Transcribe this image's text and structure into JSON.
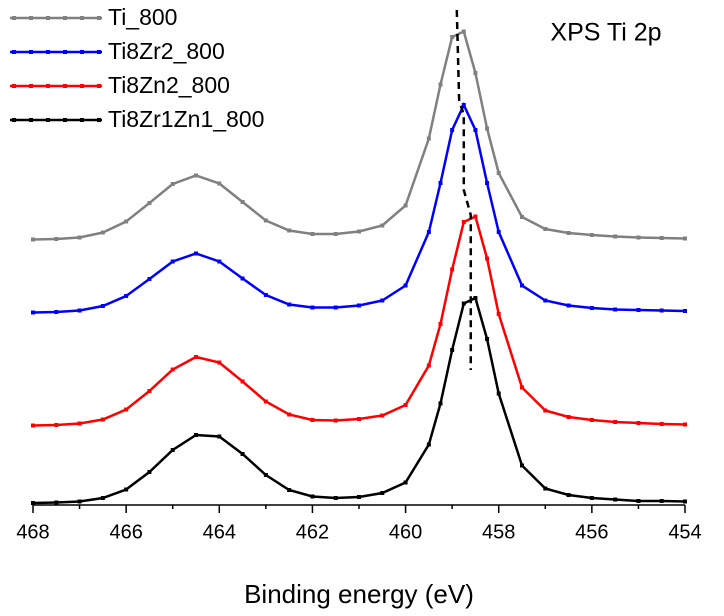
{
  "chart_data": {
    "type": "line",
    "annotation": "XPS Ti 2p",
    "x_label": "Binding energy (eV)",
    "xlim": [
      468,
      454
    ],
    "xticks": [
      468,
      466,
      464,
      462,
      460,
      458,
      456,
      454
    ],
    "xticks_minor": [
      467,
      465,
      463,
      461,
      459,
      457,
      455
    ],
    "ylim": [
      0,
      100
    ],
    "legend": "top-left",
    "x": [
      468,
      467.5,
      467,
      466.5,
      466,
      465.5,
      465,
      464.5,
      464,
      463.5,
      463,
      462.5,
      462,
      461.5,
      461,
      460.5,
      460,
      459.5,
      459.25,
      459,
      458.75,
      458.5,
      458.25,
      458,
      457.5,
      457,
      456.5,
      456,
      455.5,
      455,
      454.5,
      454
    ],
    "series": [
      {
        "name": "Ti_800",
        "color": "#808080",
        "values": [
          53.1,
          53.2,
          53.5,
          54.5,
          56.7,
          60.4,
          64.2,
          65.9,
          64.3,
          60.6,
          56.9,
          54.9,
          54.2,
          54.2,
          54.7,
          55.9,
          59.9,
          73.3,
          84.1,
          93.6,
          94.7,
          86.4,
          75.3,
          66.4,
          57.6,
          55.2,
          54.4,
          54.0,
          53.7,
          53.5,
          53.4,
          53.3
        ]
      },
      {
        "name": "Ti8Zr2_800",
        "color": "#0000ff",
        "values": [
          38.5,
          38.6,
          38.9,
          39.8,
          41.8,
          45.2,
          48.7,
          50.3,
          48.7,
          45.3,
          42.0,
          40.1,
          39.5,
          39.5,
          39.9,
          40.9,
          43.9,
          54.6,
          64.4,
          75.0,
          80.0,
          75.0,
          64.4,
          54.6,
          43.9,
          40.9,
          39.9,
          39.4,
          39.1,
          39.0,
          38.9,
          38.8
        ]
      },
      {
        "name": "Ti8Zn2_800",
        "color": "#ff0000",
        "values": [
          15.9,
          16.0,
          16.3,
          17.1,
          19.1,
          22.8,
          27.1,
          29.6,
          28.5,
          24.7,
          20.7,
          18.1,
          17.0,
          16.9,
          17.2,
          17.9,
          20.0,
          27.9,
          36.2,
          47.1,
          56.6,
          57.7,
          49.3,
          38.2,
          23.5,
          18.9,
          17.6,
          17.0,
          16.6,
          16.4,
          16.2,
          16.1
        ]
      },
      {
        "name": "Ti8Zr1Zn1_800",
        "color": "#000000",
        "values": [
          0.4,
          0.5,
          0.7,
          1.4,
          3.1,
          6.6,
          11.0,
          14.0,
          13.7,
          10.2,
          6.0,
          3.0,
          1.7,
          1.4,
          1.6,
          2.4,
          4.5,
          12.1,
          20.3,
          31.0,
          40.3,
          41.4,
          33.2,
          22.3,
          7.9,
          3.3,
          2.0,
          1.4,
          1.1,
          0.8,
          0.8,
          0.7
        ]
      }
    ],
    "peak_line": {
      "x": [
        458.9,
        458.85,
        458.75,
        458.75,
        458.6,
        458.6
      ],
      "y": [
        99,
        81,
        78,
        63,
        58,
        27
      ]
    }
  }
}
